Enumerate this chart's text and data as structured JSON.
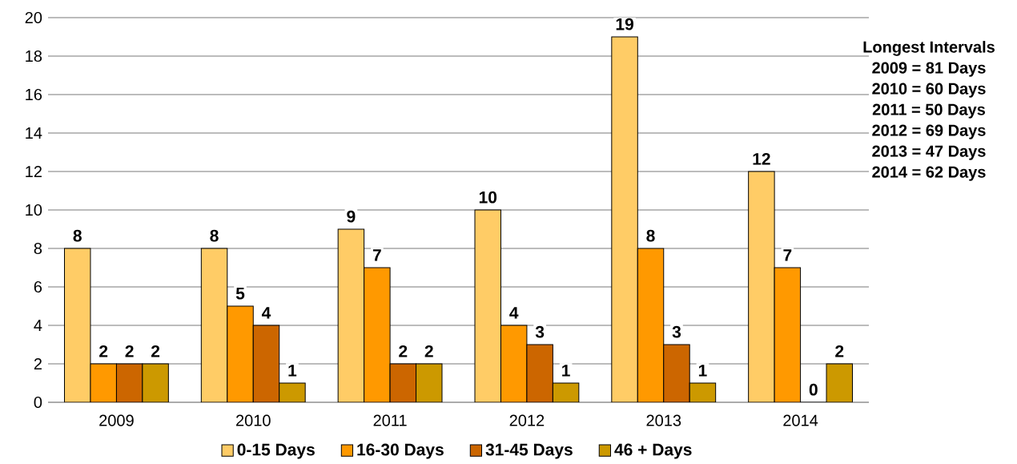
{
  "chart_data": {
    "type": "bar",
    "categories": [
      "2009",
      "2010",
      "2011",
      "2012",
      "2013",
      "2014"
    ],
    "series": [
      {
        "name": "0-15 Days",
        "color": "#ffcc66",
        "values": [
          8,
          8,
          9,
          10,
          19,
          12
        ]
      },
      {
        "name": "16-30 Days",
        "color": "#ff9900",
        "values": [
          2,
          5,
          7,
          4,
          8,
          7
        ]
      },
      {
        "name": "31-45 Days",
        "color": "#cc6600",
        "values": [
          2,
          4,
          2,
          3,
          3,
          0
        ]
      },
      {
        "name": "46 + Days",
        "color": "#cc9900",
        "values": [
          2,
          1,
          2,
          1,
          1,
          2
        ]
      }
    ],
    "ylim": [
      0,
      20
    ],
    "yticks": [
      0,
      2,
      4,
      6,
      8,
      10,
      12,
      14,
      16,
      18,
      20
    ],
    "grid": "y",
    "legend": "bottom",
    "data_labels": true,
    "annotations": [
      "Longest Intervals",
      "2009 = 81 Days",
      "2010 = 60 Days",
      "2011 = 50 Days",
      "2012 = 69 Days",
      "2013 = 47 Days",
      "2014 = 62 Days"
    ]
  }
}
